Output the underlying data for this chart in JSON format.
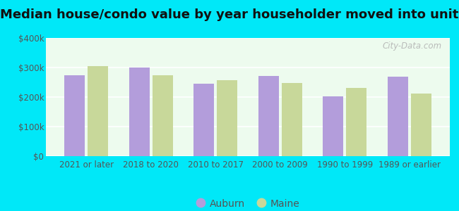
{
  "title": "Median house/condo value by year householder moved into unit",
  "categories": [
    "2021 or later",
    "2018 to 2020",
    "2010 to 2017",
    "2000 to 2009",
    "1990 to 1999",
    "1989 or earlier"
  ],
  "auburn_values": [
    275000,
    300000,
    245000,
    272000,
    203000,
    268000
  ],
  "maine_values": [
    305000,
    275000,
    258000,
    248000,
    230000,
    213000
  ],
  "auburn_color": "#b39ddb",
  "maine_color": "#c8d89a",
  "background_outer": "#00e8f8",
  "background_inner": "#edfbee",
  "ylim": [
    0,
    400000
  ],
  "yticks": [
    0,
    100000,
    200000,
    300000,
    400000
  ],
  "ytick_labels": [
    "$0",
    "$100k",
    "$200k",
    "$300k",
    "$400k"
  ],
  "legend_labels": [
    "Auburn",
    "Maine"
  ],
  "watermark": "City-Data.com",
  "title_fontsize": 13,
  "tick_fontsize": 8.5,
  "legend_fontsize": 10,
  "bar_width": 0.32,
  "bar_gap": 0.04
}
